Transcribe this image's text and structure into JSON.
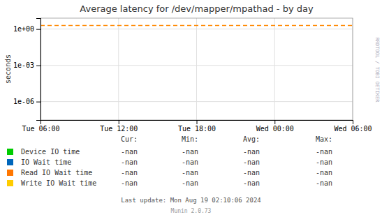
{
  "chart_data": {
    "type": "line",
    "title": "Average latency for /dev/mapper/mpathad - by day",
    "ylabel": "seconds",
    "log": "y",
    "grid": true,
    "categories": [
      "Tue 06:00",
      "Tue 12:00",
      "Tue 18:00",
      "Wed 00:00",
      "Wed 06:00"
    ],
    "ylim": [
      3e-08,
      8.0
    ],
    "yticks": [
      {
        "value": 1e-06,
        "label": "1e-06"
      },
      {
        "value": 0.001,
        "label": "1e-03"
      },
      {
        "value": 1.0,
        "label": "1e+00"
      }
    ],
    "series": [
      {
        "name": "Device IO time",
        "color": "#00cc00",
        "values": [
          null,
          null,
          null,
          null,
          null
        ]
      },
      {
        "name": "IO Wait time",
        "color": "#0066bb",
        "values": [
          null,
          null,
          null,
          null,
          null
        ]
      },
      {
        "name": "Read IO Wait time",
        "color": "#ff7700",
        "values": [
          null,
          null,
          null,
          null,
          null
        ]
      },
      {
        "name": "Write IO Wait time",
        "color": "#ffcc00",
        "values": [
          null,
          null,
          null,
          null,
          null
        ]
      }
    ],
    "reference_lines": [
      {
        "value": 2.0,
        "color": "#ff8800",
        "line_style": "dashed"
      }
    ],
    "legend_table": {
      "headers": [
        "Cur:",
        "Min:",
        "Avg:",
        "Max:"
      ],
      "value": "-nan"
    },
    "annotations": [
      "RRDTOOL / TOBI OETIKER",
      "Last update: Mon Aug 19 02:10:06 2024",
      "Munin 2.0.73"
    ]
  }
}
